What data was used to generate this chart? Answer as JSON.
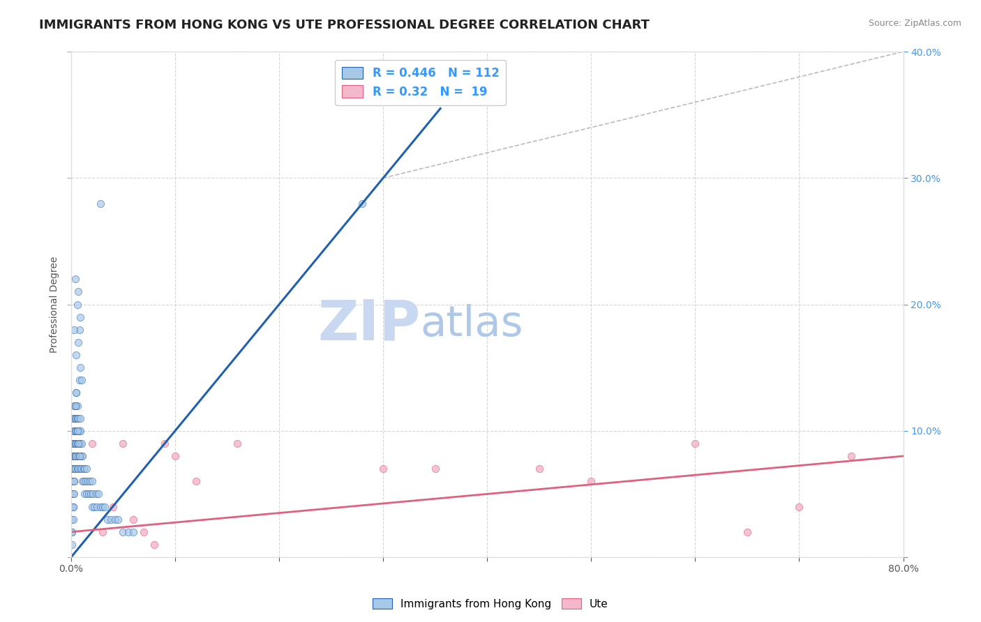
{
  "title": "IMMIGRANTS FROM HONG KONG VS UTE PROFESSIONAL DEGREE CORRELATION CHART",
  "source_text": "Source: ZipAtlas.com",
  "ylabel": "Professional Degree",
  "legend_xlabel": "Immigrants from Hong Kong",
  "legend_ylabel": "Ute",
  "xlim": [
    0,
    0.8
  ],
  "ylim": [
    0,
    0.4
  ],
  "xticks": [
    0.0,
    0.1,
    0.2,
    0.3,
    0.4,
    0.5,
    0.6,
    0.7,
    0.8
  ],
  "yticks": [
    0.0,
    0.1,
    0.2,
    0.3,
    0.4
  ],
  "blue_color": "#a8c8e8",
  "pink_color": "#f4b8cc",
  "blue_line_color": "#2060b0",
  "pink_line_color": "#e06080",
  "ref_line_color": "#aaaaaa",
  "R_blue": 0.446,
  "N_blue": 112,
  "R_pink": 0.32,
  "N_pink": 19,
  "legend_R_color": "#3399ff",
  "watermark_zip": "ZIP",
  "watermark_atlas": "atlas",
  "watermark_color_zip": "#c8d8f0",
  "watermark_color_atlas": "#b0c8e8",
  "background_color": "#ffffff",
  "grid_color": "#cccccc",
  "title_fontsize": 13,
  "axis_label_fontsize": 10,
  "tick_fontsize": 10,
  "right_tick_color": "#4499ee",
  "blue_scatter": {
    "x": [
      0.001,
      0.001,
      0.001,
      0.001,
      0.001,
      0.001,
      0.001,
      0.001,
      0.001,
      0.001,
      0.002,
      0.002,
      0.002,
      0.002,
      0.002,
      0.002,
      0.002,
      0.002,
      0.002,
      0.002,
      0.003,
      0.003,
      0.003,
      0.003,
      0.003,
      0.003,
      0.003,
      0.003,
      0.003,
      0.003,
      0.004,
      0.004,
      0.004,
      0.004,
      0.004,
      0.004,
      0.004,
      0.005,
      0.005,
      0.005,
      0.005,
      0.005,
      0.005,
      0.006,
      0.006,
      0.006,
      0.006,
      0.006,
      0.007,
      0.007,
      0.007,
      0.007,
      0.007,
      0.008,
      0.008,
      0.008,
      0.008,
      0.009,
      0.009,
      0.009,
      0.01,
      0.01,
      0.01,
      0.011,
      0.011,
      0.012,
      0.012,
      0.013,
      0.013,
      0.014,
      0.015,
      0.015,
      0.016,
      0.017,
      0.018,
      0.019,
      0.02,
      0.02,
      0.021,
      0.022,
      0.024,
      0.025,
      0.026,
      0.028,
      0.03,
      0.032,
      0.035,
      0.038,
      0.042,
      0.045,
      0.05,
      0.055,
      0.06,
      0.008,
      0.009,
      0.01,
      0.007,
      0.008,
      0.009,
      0.006,
      0.007,
      0.004,
      0.005,
      0.003,
      0.004,
      0.005,
      0.006,
      0.007,
      0.008,
      0.009,
      0.028,
      0.28
    ],
    "y": [
      0.01,
      0.02,
      0.03,
      0.04,
      0.05,
      0.06,
      0.07,
      0.08,
      0.09,
      0.02,
      0.03,
      0.04,
      0.05,
      0.06,
      0.07,
      0.08,
      0.09,
      0.1,
      0.11,
      0.04,
      0.05,
      0.06,
      0.07,
      0.08,
      0.09,
      0.1,
      0.11,
      0.12,
      0.06,
      0.07,
      0.08,
      0.09,
      0.1,
      0.11,
      0.12,
      0.07,
      0.08,
      0.09,
      0.1,
      0.11,
      0.12,
      0.13,
      0.08,
      0.09,
      0.1,
      0.11,
      0.12,
      0.07,
      0.08,
      0.09,
      0.1,
      0.11,
      0.07,
      0.08,
      0.09,
      0.1,
      0.08,
      0.09,
      0.1,
      0.07,
      0.08,
      0.09,
      0.07,
      0.08,
      0.06,
      0.07,
      0.06,
      0.07,
      0.05,
      0.06,
      0.07,
      0.05,
      0.06,
      0.05,
      0.06,
      0.05,
      0.06,
      0.04,
      0.05,
      0.04,
      0.05,
      0.04,
      0.05,
      0.04,
      0.04,
      0.04,
      0.03,
      0.03,
      0.03,
      0.03,
      0.02,
      0.02,
      0.02,
      0.14,
      0.15,
      0.14,
      0.17,
      0.18,
      0.19,
      0.2,
      0.21,
      0.22,
      0.16,
      0.18,
      0.12,
      0.13,
      0.1,
      0.09,
      0.08,
      0.11,
      0.28,
      0.28
    ]
  },
  "pink_scatter": {
    "x": [
      0.02,
      0.03,
      0.05,
      0.07,
      0.09,
      0.1,
      0.12,
      0.16,
      0.3,
      0.35,
      0.5,
      0.6,
      0.65,
      0.7,
      0.75,
      0.04,
      0.06,
      0.08,
      0.45
    ],
    "y": [
      0.09,
      0.02,
      0.09,
      0.02,
      0.09,
      0.08,
      0.06,
      0.09,
      0.07,
      0.07,
      0.06,
      0.09,
      0.02,
      0.04,
      0.08,
      0.04,
      0.03,
      0.01,
      0.07
    ]
  },
  "blue_line": {
    "x0": 0.0,
    "x1": 0.355,
    "y0": 0.0,
    "y1": 0.355
  },
  "pink_line": {
    "x0": 0.0,
    "x1": 0.8,
    "y0": 0.02,
    "y1": 0.08
  },
  "ref_line": {
    "x0": 0.3,
    "x1": 0.8,
    "y0": 0.3,
    "y1": 0.4
  }
}
